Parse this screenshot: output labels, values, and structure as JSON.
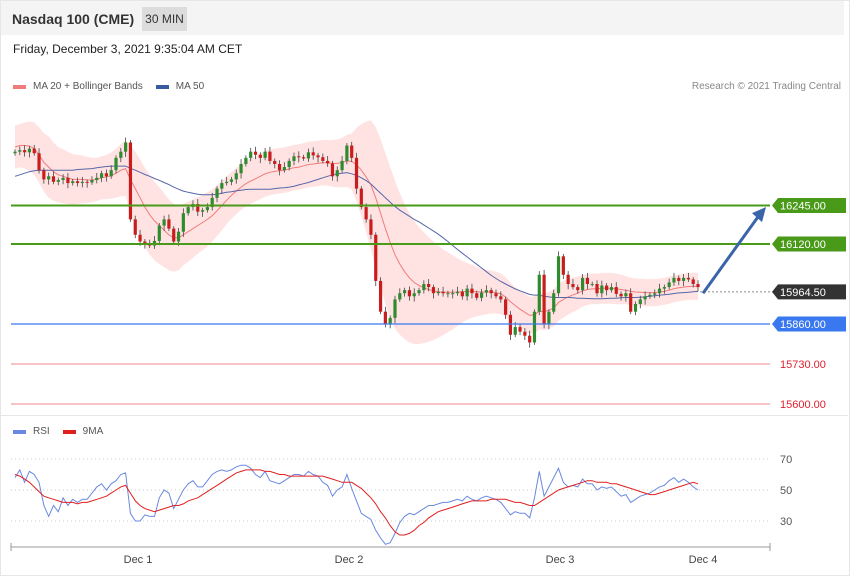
{
  "header": {
    "title": "Nasdaq 100 (CME)",
    "timeframe": "30 MIN",
    "datetime": "Friday, December 3, 2021 9:35:04 AM CET"
  },
  "legend": {
    "ma20_label": "MA 20 + Bollinger Bands",
    "ma50_label": "MA 50",
    "copyright": "Research © 2021 Trading Central",
    "rsi_label": "RSI",
    "rsi_ma_label": "9MA"
  },
  "colors": {
    "resistance": "#4a9a1a",
    "pivot": "#3a78f0",
    "support": "#f0a0a8",
    "support_text": "#e02030",
    "last_price": "#333333",
    "arrow": "#3a65a8",
    "bollinger": "#ffdede",
    "ma20": "#f07b7b",
    "ma50": "#5566a8",
    "up_candle": "#2e8b2e",
    "down_candle": "#c91c1c",
    "rsi": "#6a88e0",
    "rsi_ma": "#e02020"
  },
  "chart_data": [
    {
      "type": "candlestick",
      "title": "",
      "x_labels": [
        "Dec 1",
        "Dec 2",
        "Dec 3",
        "Dec 4"
      ],
      "levels": [
        {
          "name": "resistance",
          "value": 16245.0,
          "label": "16245.00"
        },
        {
          "name": "resistance",
          "value": 16120.0,
          "label": "16120.00"
        },
        {
          "name": "last",
          "value": 15964.5,
          "label": "15964.50"
        },
        {
          "name": "pivot",
          "value": 15860.0,
          "label": "15860.00"
        },
        {
          "name": "support",
          "value": 15730.0,
          "label": "15730.00"
        },
        {
          "name": "support",
          "value": 15600.0,
          "label": "15600.00"
        }
      ],
      "close_series": [
        16420,
        16425,
        16418,
        16430,
        16415,
        16360,
        16330,
        16340,
        16322,
        16328,
        16335,
        16318,
        16324,
        16318,
        16322,
        16320,
        16328,
        16335,
        16350,
        16340,
        16360,
        16400,
        16420,
        16450,
        16200,
        16150,
        16128,
        16122,
        16115,
        16130,
        16180,
        16200,
        16170,
        16128,
        16160,
        16220,
        16240,
        16250,
        16225,
        16230,
        16240,
        16270,
        16300,
        16318,
        16322,
        16330,
        16350,
        16380,
        16400,
        16420,
        16410,
        16400,
        16420,
        16390,
        16380,
        16360,
        16370,
        16390,
        16405,
        16402,
        16398,
        16418,
        16408,
        16402,
        16390,
        16382,
        16340,
        16360,
        16390,
        16440,
        16400,
        16300,
        16240,
        16200,
        16150,
        16000,
        15900,
        15860,
        15880,
        15940,
        15960,
        15970,
        15950,
        15960,
        15970,
        15990,
        15980,
        15960,
        15965,
        15960,
        15960,
        15960,
        15965,
        15950,
        15975,
        15960,
        15945,
        15962,
        15970,
        15960,
        15950,
        15940,
        15890,
        15825,
        15850,
        15835,
        15822,
        15800,
        15900,
        16020,
        15860,
        15900,
        15960,
        16080,
        16020,
        15990,
        15980,
        15970,
        16010,
        15990,
        15990,
        15960,
        15985,
        15970,
        15980,
        15958,
        15950,
        15960,
        15900,
        15925,
        15940,
        15950,
        15955,
        15960,
        15975,
        15980,
        15995,
        16010,
        16000,
        16010,
        16005,
        15990,
        15980
      ],
      "ma20": [
        16435,
        16440,
        16440,
        16438,
        16430,
        16410,
        16385,
        16370,
        16355,
        16345,
        16340,
        16335,
        16330,
        16330,
        16330,
        16328,
        16328,
        16330,
        16335,
        16338,
        16342,
        16350,
        16360,
        16365,
        16330,
        16300,
        16270,
        16240,
        16215,
        16195,
        16180,
        16165,
        16150,
        16140,
        16140,
        16150,
        16160,
        16170,
        16180,
        16190,
        16200,
        16212,
        16228,
        16245,
        16262,
        16278,
        16292,
        16305,
        16316,
        16325,
        16332,
        16340,
        16348,
        16353,
        16356,
        16358,
        16360,
        16364,
        16368,
        16370,
        16374,
        16378,
        16380,
        16382,
        16384,
        16384,
        16382,
        16382,
        16385,
        16390,
        16388,
        16378,
        16360,
        16338,
        16312,
        16270,
        16220,
        16170,
        16125,
        16085,
        16055,
        16030,
        16010,
        15995,
        15985,
        15978,
        15972,
        15968,
        15965,
        15963,
        15963,
        15963,
        15964,
        15965,
        15966,
        15966,
        15965,
        15964,
        15964,
        15964,
        15962,
        15958,
        15948,
        15932,
        15920,
        15908,
        15898,
        15888,
        15890,
        15902,
        15900,
        15905,
        15912,
        15930,
        15940,
        15948,
        15955,
        15960,
        15968,
        15972,
        15974,
        15974,
        15976,
        15976,
        15976,
        15974,
        15972,
        15970,
        15966,
        15964,
        15963,
        15962,
        15962,
        15962,
        15964,
        15966,
        15970,
        15975,
        15978,
        15980,
        15982,
        15983,
        15982
      ],
      "ma50": [
        16340,
        16345,
        16350,
        16355,
        16358,
        16360,
        16360,
        16360,
        16360,
        16360,
        16360,
        16360,
        16360,
        16362,
        16363,
        16364,
        16365,
        16368,
        16370,
        16372,
        16373,
        16373,
        16373,
        16373,
        16366,
        16360,
        16353,
        16346,
        16340,
        16333,
        16327,
        16320,
        16313,
        16305,
        16298,
        16292,
        16288,
        16285,
        16282,
        16280,
        16280,
        16280,
        16282,
        16285,
        16288,
        16290,
        16293,
        16295,
        16297,
        16298,
        16298,
        16298,
        16298,
        16298,
        16300,
        16302,
        16303,
        16305,
        16308,
        16312,
        16316,
        16320,
        16325,
        16330,
        16335,
        16340,
        16345,
        16348,
        16350,
        16352,
        16348,
        16343,
        16335,
        16326,
        16315,
        16300,
        16285,
        16270,
        16256,
        16242,
        16230,
        16220,
        16210,
        16200,
        16192,
        16182,
        16172,
        16162,
        16152,
        16140,
        16128,
        16115,
        16102,
        16090,
        16078,
        16066,
        16054,
        16042,
        16030,
        16018,
        16008,
        15998,
        15990,
        15982,
        15974,
        15968,
        15962,
        15956,
        15954,
        15954,
        15950,
        15948,
        15946,
        15946,
        15946,
        15946,
        15945,
        15944,
        15944,
        15943,
        15942,
        15942,
        15942,
        15943,
        15944,
        15944,
        15945,
        15946,
        15946,
        15946,
        15947,
        15948,
        15950,
        15952,
        15954,
        15955,
        15957,
        15959,
        15961,
        15962,
        15963,
        15965,
        15966
      ],
      "bb_width": [
        70,
        70,
        75,
        80,
        85,
        90,
        95,
        100,
        95,
        90,
        88,
        85,
        82,
        80,
        78,
        75,
        72,
        70,
        70,
        72,
        75,
        80,
        85,
        90,
        110,
        120,
        125,
        128,
        130,
        128,
        125,
        120,
        115,
        110,
        105,
        100,
        98,
        95,
        92,
        90,
        88,
        85,
        82,
        80,
        78,
        76,
        75,
        74,
        74,
        74,
        74,
        74,
        74,
        74,
        74,
        74,
        74,
        74,
        74,
        74,
        74,
        74,
        74,
        74,
        74,
        74,
        76,
        78,
        80,
        85,
        90,
        120,
        150,
        180,
        210,
        230,
        240,
        245,
        245,
        240,
        230,
        220,
        210,
        200,
        190,
        180,
        170,
        160,
        150,
        140,
        130,
        120,
        110,
        100,
        92,
        86,
        80,
        76,
        72,
        70,
        68,
        66,
        64,
        62,
        60,
        60,
        60,
        60,
        60,
        60,
        60,
        60,
        60,
        60,
        60,
        58,
        56,
        54,
        52,
        50,
        50,
        50,
        50,
        50,
        50,
        50,
        48,
        46,
        44,
        44,
        44,
        44,
        44,
        44,
        44,
        44,
        44,
        44,
        44,
        44,
        44,
        44,
        44
      ],
      "rsi": [
        58,
        63,
        55,
        62,
        60,
        55,
        40,
        33,
        40,
        36,
        45,
        40,
        44,
        42,
        44,
        44,
        48,
        52,
        54,
        50,
        54,
        56,
        60,
        61,
        35,
        30,
        30,
        34,
        33,
        33,
        45,
        50,
        48,
        38,
        44,
        50,
        54,
        56,
        52,
        52,
        56,
        60,
        62,
        63,
        62,
        63,
        65,
        66,
        66,
        64,
        60,
        58,
        62,
        56,
        55,
        54,
        56,
        58,
        60,
        60,
        59,
        62,
        60,
        59,
        55,
        53,
        46,
        50,
        52,
        60,
        51,
        43,
        35,
        33,
        31,
        24,
        19,
        15,
        16,
        22,
        29,
        33,
        35,
        34,
        36,
        38,
        40,
        40,
        41,
        42,
        42,
        43,
        44,
        43,
        46,
        44,
        43,
        45,
        46,
        45,
        44,
        42,
        38,
        34,
        36,
        35,
        35,
        32,
        45,
        62,
        46,
        52,
        58,
        64,
        55,
        52,
        53,
        52,
        57,
        54,
        54,
        50,
        52,
        51,
        52,
        49,
        46,
        47,
        42,
        44,
        46,
        47,
        48,
        50,
        52,
        53,
        56,
        58,
        55,
        57,
        55,
        52,
        50
      ],
      "rsi_ma": [
        60,
        59,
        57,
        55,
        52,
        49,
        46,
        45,
        44,
        43,
        42,
        42,
        42,
        41,
        42,
        42,
        43,
        44,
        45,
        46,
        48,
        50,
        52,
        53,
        48,
        43,
        40,
        38,
        37,
        36,
        37,
        38,
        39,
        40,
        40,
        41,
        43,
        44,
        45,
        47,
        49,
        51,
        53,
        55,
        57,
        59,
        61,
        62,
        63,
        63,
        63,
        63,
        62,
        62,
        61,
        60,
        60,
        59,
        59,
        59,
        59,
        59,
        59,
        59,
        59,
        58,
        57,
        56,
        55,
        55,
        55,
        53,
        51,
        48,
        45,
        41,
        36,
        32,
        27,
        23,
        21,
        21,
        22,
        24,
        27,
        29,
        32,
        34,
        36,
        37,
        38,
        39,
        40,
        41,
        42,
        43,
        43,
        43,
        43,
        44,
        44,
        44,
        44,
        43,
        42,
        42,
        41,
        40,
        40,
        42,
        44,
        46,
        48,
        50,
        51,
        52,
        53,
        54,
        55,
        56,
        56,
        55,
        55,
        55,
        54,
        54,
        53,
        52,
        51,
        50,
        49,
        48,
        47,
        47,
        48,
        49,
        50,
        51,
        52,
        53,
        54,
        55,
        54
      ],
      "rsi_ticks": [
        "70",
        "50",
        "30"
      ]
    }
  ]
}
